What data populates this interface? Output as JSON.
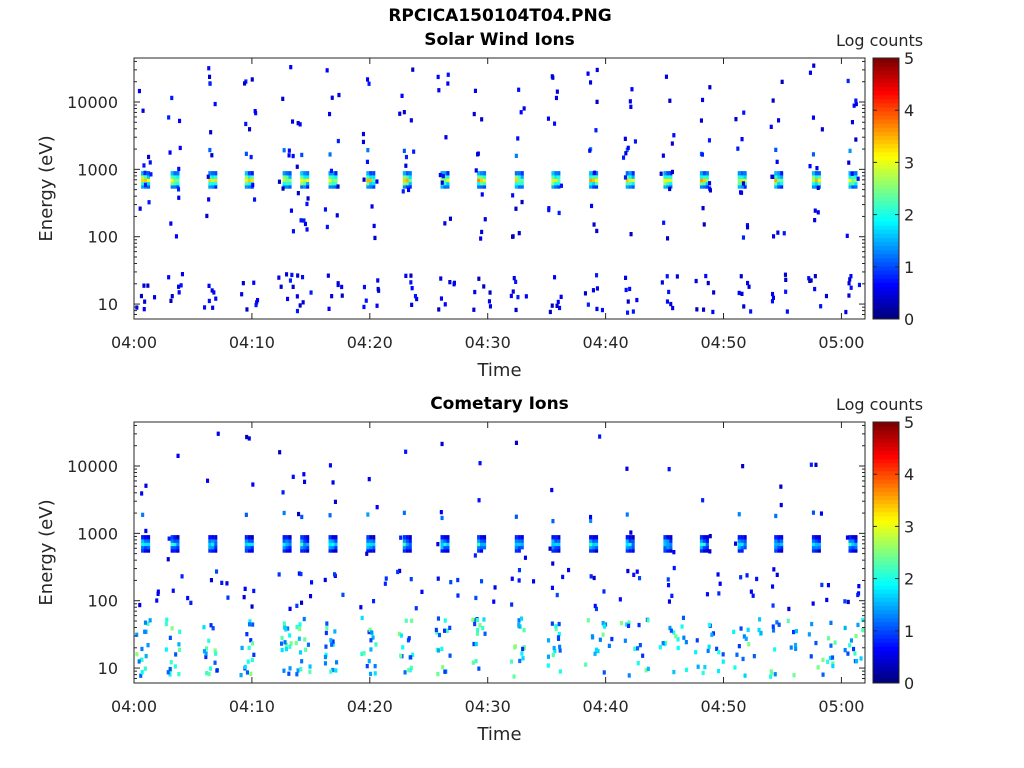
{
  "figure": {
    "title": "RPCICA150104T04.PNG"
  },
  "colorbar": {
    "label": "Log counts",
    "ticks": [
      "0",
      "1",
      "2",
      "3",
      "4",
      "5"
    ],
    "range": [
      0,
      5
    ],
    "colormap": "jet"
  },
  "chart_data": [
    {
      "type": "heatmap",
      "title": "Solar Wind Ions",
      "xlabel": "Time",
      "ylabel": "Energy (eV)",
      "y_scale": "log",
      "ylim": [
        6,
        45000
      ],
      "xlim": [
        "04:00",
        "05:02"
      ],
      "x_ticks": [
        "04:00",
        "04:10",
        "04:20",
        "04:30",
        "04:40",
        "04:50",
        "05:00"
      ],
      "y_ticks": [
        "10",
        "100",
        "1000",
        "10000"
      ],
      "color_value_range": [
        0,
        5
      ],
      "scan_times_min": [
        0.6,
        3.1,
        6.3,
        9.4,
        12.6,
        14.1,
        16.5,
        19.7,
        22.8,
        26.0,
        29.1,
        32.3,
        35.4,
        38.6,
        41.7,
        44.9,
        48.0,
        51.2,
        54.3,
        57.5,
        60.6
      ],
      "peak_energy_ev": 750,
      "peak_log_counts": 3.4,
      "low_energy_band_ev": [
        8,
        30
      ],
      "low_energy_log_counts": 0.6
    },
    {
      "type": "heatmap",
      "title": "Cometary Ions",
      "xlabel": "Time",
      "ylabel": "Energy (eV)",
      "y_scale": "log",
      "ylim": [
        6,
        45000
      ],
      "xlim": [
        "04:00",
        "05:02"
      ],
      "x_ticks": [
        "04:00",
        "04:10",
        "04:20",
        "04:30",
        "04:40",
        "04:50",
        "05:00"
      ],
      "y_ticks": [
        "10",
        "100",
        "1000",
        "10000"
      ],
      "color_value_range": [
        0,
        5
      ],
      "scan_times_min": [
        0.6,
        3.1,
        6.3,
        9.4,
        12.6,
        14.1,
        16.5,
        19.7,
        22.8,
        26.0,
        29.1,
        32.3,
        35.4,
        38.6,
        41.7,
        44.9,
        48.0,
        51.2,
        54.3,
        57.5,
        60.6
      ],
      "peak_energy_ev": 750,
      "peak_log_counts": 2.0,
      "low_energy_band_ev": [
        8,
        60
      ],
      "low_energy_log_counts": 1.6
    }
  ]
}
